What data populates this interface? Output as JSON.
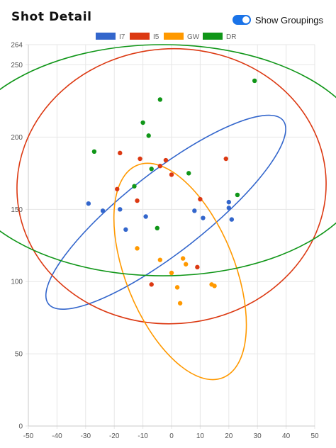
{
  "page": {
    "title": "Shot Detail"
  },
  "toggle": {
    "label": "Show Groupings",
    "checked": true
  },
  "chart_data": {
    "type": "scatter",
    "xlim": [
      -50,
      50
    ],
    "ylim": [
      0,
      264
    ],
    "x_ticks": [
      -50,
      -40,
      -30,
      -20,
      -10,
      0,
      10,
      20,
      30,
      40,
      50
    ],
    "y_ticks": [
      0,
      50,
      100,
      150,
      200,
      250,
      264
    ],
    "grid": true,
    "legend_position": "top",
    "series": [
      {
        "name": "I7",
        "color": "#3366cc",
        "points": [
          [
            -29,
            154
          ],
          [
            -24,
            149
          ],
          [
            -18,
            150
          ],
          [
            -16,
            136
          ],
          [
            -9,
            145
          ],
          [
            8,
            149
          ],
          [
            11,
            144
          ],
          [
            20,
            155
          ],
          [
            20,
            151
          ],
          [
            21,
            143
          ]
        ],
        "grouping": {
          "cx": -2,
          "cy": 148,
          "rx": 52,
          "ry": 14,
          "rotation": -38
        }
      },
      {
        "name": "I5",
        "color": "#dc3912",
        "points": [
          [
            -18,
            189
          ],
          [
            -11,
            185
          ],
          [
            -4,
            180
          ],
          [
            -2,
            184
          ],
          [
            0,
            174
          ],
          [
            -19,
            164
          ],
          [
            -12,
            156
          ],
          [
            10,
            157
          ],
          [
            19,
            185
          ],
          [
            -7,
            98
          ],
          [
            9,
            110
          ]
        ],
        "grouping": {
          "cx": 0,
          "cy": 166,
          "rx": 54,
          "ry": 48,
          "rotation": -4
        }
      },
      {
        "name": "GW",
        "color": "#ff9900",
        "points": [
          [
            -12,
            123
          ],
          [
            -4,
            115
          ],
          [
            4,
            116
          ],
          [
            5,
            112
          ],
          [
            0,
            106
          ],
          [
            2,
            96
          ],
          [
            3,
            85
          ],
          [
            14,
            98
          ],
          [
            15,
            97
          ]
        ],
        "grouping": {
          "cx": 3,
          "cy": 107,
          "rx": 19,
          "ry": 40,
          "rotation": -22
        }
      },
      {
        "name": "DR",
        "color": "#109618",
        "points": [
          [
            -27,
            190
          ],
          [
            -10,
            210
          ],
          [
            -8,
            201
          ],
          [
            -4,
            226
          ],
          [
            -7,
            178
          ],
          [
            -13,
            166
          ],
          [
            6,
            175
          ],
          [
            -5,
            137
          ],
          [
            23,
            160
          ],
          [
            29,
            239
          ]
        ],
        "grouping": {
          "cx": -3,
          "cy": 184,
          "rx": 72,
          "ry": 80,
          "rotation": 0
        }
      }
    ]
  }
}
